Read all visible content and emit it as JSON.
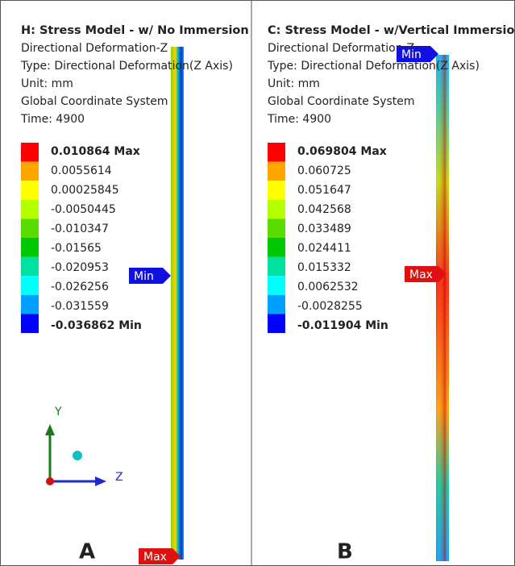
{
  "panels": [
    {
      "title": "H: Stress  Model - w/ No Immersion",
      "info": [
        "Directional Deformation-Z",
        "Type: Directional Deformation(Z Axis)",
        "Unit: mm",
        "Global Coordinate System",
        "Time: 4900"
      ],
      "legend": [
        "0.010864 Max",
        "0.0055614",
        "0.00025845",
        "-0.0050445",
        "-0.010347",
        "-0.01565",
        "-0.020953",
        "-0.026256",
        "-0.031559",
        "-0.036862 Min"
      ],
      "min_tag": "Min",
      "max_tag": "Max",
      "letter": "A"
    },
    {
      "title": "C: Stress Model - w/Vertical Immersion",
      "info": [
        "Directional Deformation-Z",
        "Type: Directional Deformation(Z Axis)",
        "Unit: mm",
        "Global Coordinate System",
        "Time: 4900"
      ],
      "legend": [
        "0.069804 Max",
        "0.060725",
        "0.051647",
        "0.042568",
        "0.033489",
        "0.024411",
        "0.015332",
        "0.0062532",
        "-0.0028255",
        "-0.011904 Min"
      ],
      "min_tag": "Min",
      "max_tag": "Max",
      "letter": "B"
    }
  ],
  "axes": {
    "y": "Y",
    "z": "Z"
  }
}
